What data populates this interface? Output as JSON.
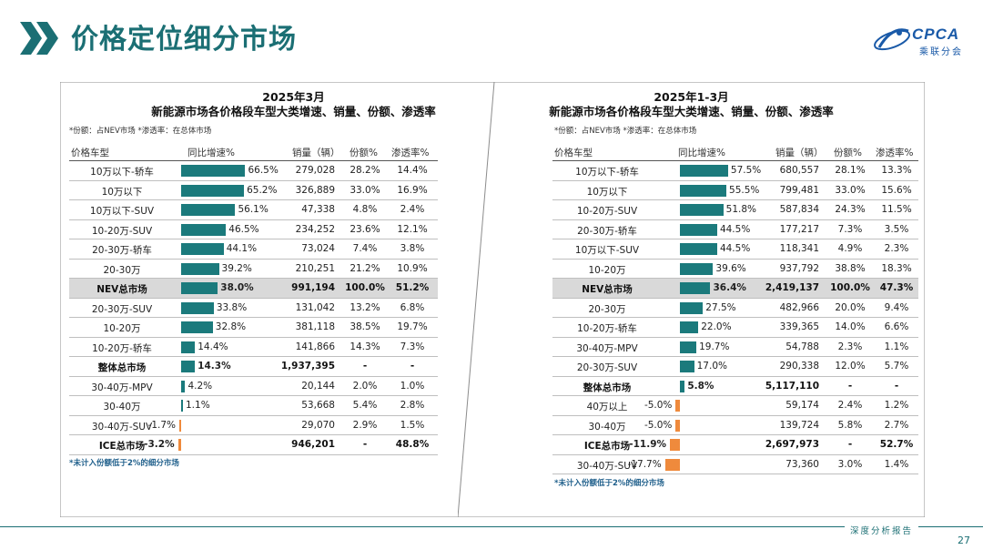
{
  "page": {
    "title": "价格定位细分市场",
    "logo_text": "CPCA",
    "logo_sub": "乘联分会",
    "footer_text": "深度分析报告",
    "page_number": "27"
  },
  "colors": {
    "teal": "#1b6f74",
    "bar_positive": "#1b7a7c",
    "bar_negative": "#ef8a3c",
    "highlight_row": "#d9d9d9"
  },
  "chart_data": [
    {
      "type": "table",
      "title": "2025年3月",
      "subtitle": "新能源市场各价格段车型大类增速、销量、份额、渗透率",
      "note": "*份额：占NEV市场    *渗透率：在总体市场",
      "columns": [
        "价格车型",
        "同比增速%",
        "销量（辆）",
        "份额%",
        "渗透率%"
      ],
      "growth_axis_range": [
        -10,
        70
      ],
      "rows": [
        {
          "name": "10万以下-轿车",
          "growth": 66.5,
          "growth_label": "66.5%",
          "sales": "279,028",
          "share": "28.2%",
          "pen": "14.4%",
          "bold": false,
          "hl": false
        },
        {
          "name": "10万以下",
          "growth": 65.2,
          "growth_label": "65.2%",
          "sales": "326,889",
          "share": "33.0%",
          "pen": "16.9%",
          "bold": false,
          "hl": false
        },
        {
          "name": "10万以下-SUV",
          "growth": 56.1,
          "growth_label": "56.1%",
          "sales": "47,338",
          "share": "4.8%",
          "pen": "2.4%",
          "bold": false,
          "hl": false
        },
        {
          "name": "10-20万-SUV",
          "growth": 46.5,
          "growth_label": "46.5%",
          "sales": "234,252",
          "share": "23.6%",
          "pen": "12.1%",
          "bold": false,
          "hl": false
        },
        {
          "name": "20-30万-轿车",
          "growth": 44.1,
          "growth_label": "44.1%",
          "sales": "73,024",
          "share": "7.4%",
          "pen": "3.8%",
          "bold": false,
          "hl": false
        },
        {
          "name": "20-30万",
          "growth": 39.2,
          "growth_label": "39.2%",
          "sales": "210,251",
          "share": "21.2%",
          "pen": "10.9%",
          "bold": false,
          "hl": false
        },
        {
          "name": "NEV总市场",
          "growth": 38.0,
          "growth_label": "38.0%",
          "sales": "991,194",
          "share": "100.0%",
          "pen": "51.2%",
          "bold": true,
          "hl": true
        },
        {
          "name": "20-30万-SUV",
          "growth": 33.8,
          "growth_label": "33.8%",
          "sales": "131,042",
          "share": "13.2%",
          "pen": "6.8%",
          "bold": false,
          "hl": false
        },
        {
          "name": "10-20万",
          "growth": 32.8,
          "growth_label": "32.8%",
          "sales": "381,118",
          "share": "38.5%",
          "pen": "19.7%",
          "bold": false,
          "hl": false
        },
        {
          "name": "10-20万-轿车",
          "growth": 14.4,
          "growth_label": "14.4%",
          "sales": "141,866",
          "share": "14.3%",
          "pen": "7.3%",
          "bold": false,
          "hl": false
        },
        {
          "name": "整体总市场",
          "growth": 14.3,
          "growth_label": "14.3%",
          "sales": "1,937,395",
          "share": "-",
          "pen": "-",
          "bold": true,
          "hl": false
        },
        {
          "name": "30-40万-MPV",
          "growth": 4.2,
          "growth_label": "4.2%",
          "sales": "20,144",
          "share": "2.0%",
          "pen": "1.0%",
          "bold": false,
          "hl": false
        },
        {
          "name": "30-40万",
          "growth": 1.1,
          "growth_label": "1.1%",
          "sales": "53,668",
          "share": "5.4%",
          "pen": "2.8%",
          "bold": false,
          "hl": false
        },
        {
          "name": "30-40万-SUV",
          "growth": -1.7,
          "growth_label": "-1.7%",
          "sales": "29,070",
          "share": "2.9%",
          "pen": "1.5%",
          "bold": false,
          "hl": false
        },
        {
          "name": "ICE总市场",
          "growth": -3.2,
          "growth_label": "-3.2%",
          "sales": "946,201",
          "share": "-",
          "pen": "48.8%",
          "bold": true,
          "hl": false
        }
      ],
      "footnote": "*未计入份额低于2%的细分市场"
    },
    {
      "type": "table",
      "title": "2025年1-3月",
      "subtitle": "新能源市场各价格段车型大类增速、销量、份额、渗透率",
      "note": "*份额：占NEV市场    *渗透率：在总体市场",
      "columns": [
        "价格车型",
        "同比增速%",
        "销量（辆）",
        "份额%",
        "渗透率%"
      ],
      "growth_axis_range": [
        -20,
        60
      ],
      "rows": [
        {
          "name": "10万以下-轿车",
          "growth": 57.5,
          "growth_label": "57.5%",
          "sales": "680,557",
          "share": "28.1%",
          "pen": "13.3%",
          "bold": false,
          "hl": false
        },
        {
          "name": "10万以下",
          "growth": 55.5,
          "growth_label": "55.5%",
          "sales": "799,481",
          "share": "33.0%",
          "pen": "15.6%",
          "bold": false,
          "hl": false
        },
        {
          "name": "10-20万-SUV",
          "growth": 51.8,
          "growth_label": "51.8%",
          "sales": "587,834",
          "share": "24.3%",
          "pen": "11.5%",
          "bold": false,
          "hl": false
        },
        {
          "name": "20-30万-轿车",
          "growth": 44.5,
          "growth_label": "44.5%",
          "sales": "177,217",
          "share": "7.3%",
          "pen": "3.5%",
          "bold": false,
          "hl": false
        },
        {
          "name": "10万以下-SUV",
          "growth": 44.5,
          "growth_label": "44.5%",
          "sales": "118,341",
          "share": "4.9%",
          "pen": "2.3%",
          "bold": false,
          "hl": false
        },
        {
          "name": "10-20万",
          "growth": 39.6,
          "growth_label": "39.6%",
          "sales": "937,792",
          "share": "38.8%",
          "pen": "18.3%",
          "bold": false,
          "hl": false
        },
        {
          "name": "NEV总市场",
          "growth": 36.4,
          "growth_label": "36.4%",
          "sales": "2,419,137",
          "share": "100.0%",
          "pen": "47.3%",
          "bold": true,
          "hl": true
        },
        {
          "name": "20-30万",
          "growth": 27.5,
          "growth_label": "27.5%",
          "sales": "482,966",
          "share": "20.0%",
          "pen": "9.4%",
          "bold": false,
          "hl": false
        },
        {
          "name": "10-20万-轿车",
          "growth": 22.0,
          "growth_label": "22.0%",
          "sales": "339,365",
          "share": "14.0%",
          "pen": "6.6%",
          "bold": false,
          "hl": false
        },
        {
          "name": "30-40万-MPV",
          "growth": 19.7,
          "growth_label": "19.7%",
          "sales": "54,788",
          "share": "2.3%",
          "pen": "1.1%",
          "bold": false,
          "hl": false
        },
        {
          "name": "20-30万-SUV",
          "growth": 17.0,
          "growth_label": "17.0%",
          "sales": "290,338",
          "share": "12.0%",
          "pen": "5.7%",
          "bold": false,
          "hl": false
        },
        {
          "name": "整体总市场",
          "growth": 5.8,
          "growth_label": "5.8%",
          "sales": "5,117,110",
          "share": "-",
          "pen": "-",
          "bold": true,
          "hl": false
        },
        {
          "name": "40万以上",
          "growth": -5.0,
          "growth_label": "-5.0%",
          "sales": "59,174",
          "share": "2.4%",
          "pen": "1.2%",
          "bold": false,
          "hl": false
        },
        {
          "name": "30-40万",
          "growth": -5.0,
          "growth_label": "-5.0%",
          "sales": "139,724",
          "share": "5.8%",
          "pen": "2.7%",
          "bold": false,
          "hl": false
        },
        {
          "name": "ICE总市场",
          "growth": -11.9,
          "growth_label": "-11.9%",
          "sales": "2,697,973",
          "share": "-",
          "pen": "52.7%",
          "bold": true,
          "hl": false
        },
        {
          "name": "30-40万-SUV",
          "growth": -17.7,
          "growth_label": "-17.7%",
          "sales": "73,360",
          "share": "3.0%",
          "pen": "1.4%",
          "bold": false,
          "hl": false
        }
      ],
      "footnote": "*未计入份额低于2%的细分市场"
    }
  ]
}
